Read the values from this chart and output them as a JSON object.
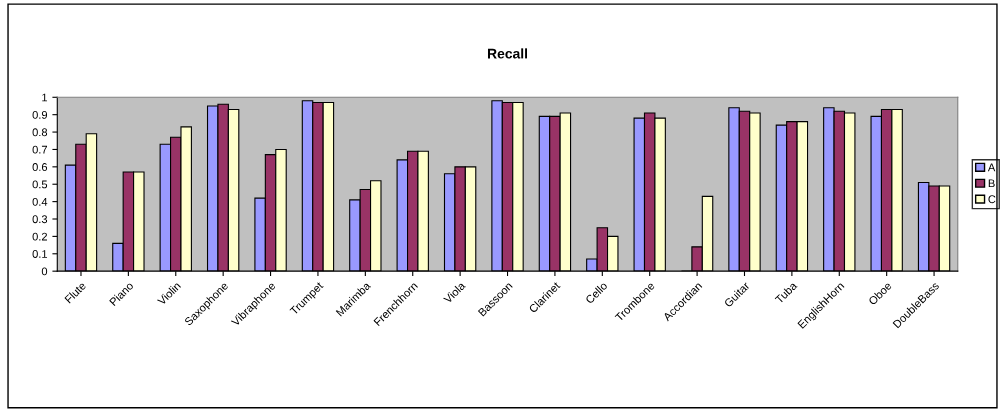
{
  "chart_data": {
    "type": "bar",
    "title": "Recall",
    "categories": [
      "Flute",
      "Piano",
      "Violin",
      "Saxophone",
      "Vibraphone",
      "Trumpet",
      "Marimba",
      "Frenchhorn",
      "Viola",
      "Bassoon",
      "Clarinet",
      "Cello",
      "Trombone",
      "Accordian",
      "Guitar",
      "Tuba",
      "EnglishHorn",
      "Oboe",
      "DoubleBass"
    ],
    "series": [
      {
        "name": "A",
        "color": "#9999ff",
        "values": [
          0.61,
          0.16,
          0.73,
          0.95,
          0.42,
          0.98,
          0.41,
          0.64,
          0.56,
          0.98,
          0.89,
          0.07,
          0.88,
          0,
          0.94,
          0.84,
          0.94,
          0.89,
          0.51
        ]
      },
      {
        "name": "B",
        "color": "#993366",
        "values": [
          0.73,
          0.57,
          0.77,
          0.96,
          0.67,
          0.97,
          0.47,
          0.69,
          0.6,
          0.97,
          0.89,
          0.25,
          0.91,
          0.14,
          0.92,
          0.86,
          0.92,
          0.93,
          0.49
        ]
      },
      {
        "name": "C",
        "color": "#ffffcc",
        "values": [
          0.79,
          0.57,
          0.83,
          0.93,
          0.7,
          0.97,
          0.52,
          0.69,
          0.6,
          0.97,
          0.91,
          0.2,
          0.88,
          0.43,
          0.91,
          0.86,
          0.91,
          0.93,
          0.49
        ]
      }
    ],
    "ylim": [
      0,
      1
    ],
    "yticks": [
      0,
      0.1,
      0.2,
      0.3,
      0.4,
      0.5,
      0.6,
      0.7,
      0.8,
      0.9,
      1
    ],
    "grid": false,
    "legend": "right"
  }
}
